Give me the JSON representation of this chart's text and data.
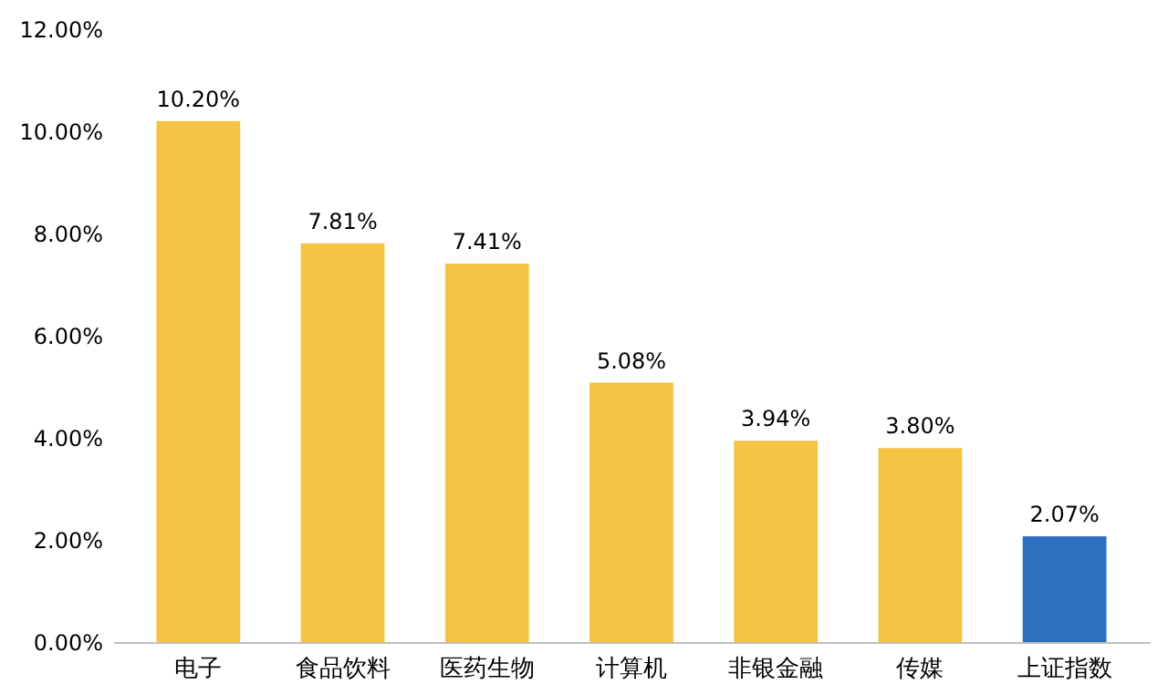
{
  "chart_data": {
    "type": "bar",
    "categories": [
      "电子",
      "食品饮料",
      "医药生物",
      "计算机",
      "非银金融",
      "传媒",
      "上证指数"
    ],
    "values": [
      10.2,
      7.81,
      7.41,
      5.08,
      3.94,
      3.8,
      2.07
    ],
    "colors": [
      "#f5c242",
      "#f5c242",
      "#f5c242",
      "#f5c242",
      "#f5c242",
      "#f5c242",
      "#2e6fc0"
    ],
    "value_labels": [
      "10.20%",
      "7.81%",
      "7.41%",
      "5.08%",
      "3.94%",
      "3.80%",
      "2.07%"
    ],
    "ylim": [
      0,
      12
    ],
    "yticks": [
      {
        "value": 0,
        "label": "0.00%"
      },
      {
        "value": 2,
        "label": "2.00%"
      },
      {
        "value": 4,
        "label": "4.00%"
      },
      {
        "value": 6,
        "label": "6.00%"
      },
      {
        "value": 8,
        "label": "8.00%"
      },
      {
        "value": 10,
        "label": "10.00%"
      },
      {
        "value": 12,
        "label": "12.00%"
      }
    ],
    "grid": false,
    "legend": false
  }
}
